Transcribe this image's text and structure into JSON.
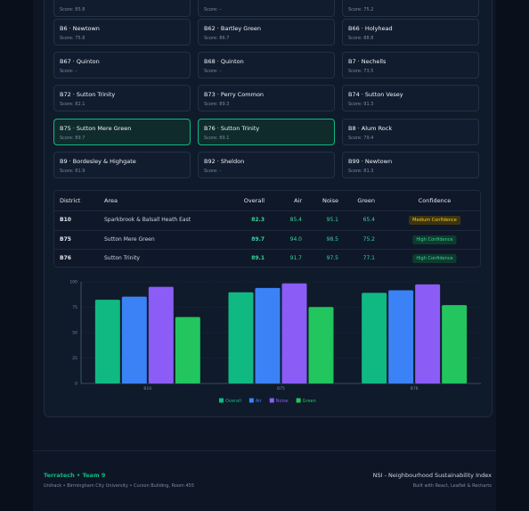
{
  "cards": [
    {
      "score": "Score: 85.8"
    },
    {
      "score": "Score: –"
    },
    {
      "score": "Score: 75.2"
    },
    {
      "title": "B6 · Newtown",
      "score": "Score: 75.8"
    },
    {
      "title": "B62 · Bartley Green",
      "score": "Score: 86.7"
    },
    {
      "title": "B66 · Holyhead",
      "score": "Score: 88.8"
    },
    {
      "title": "B67 · Quinton",
      "score": "Score: –"
    },
    {
      "title": "B68 · Quinton",
      "score": "Score: –"
    },
    {
      "title": "B7 · Nechells",
      "score": "Score: 73.5"
    },
    {
      "title": "B72 · Sutton Trinity",
      "score": "Score: 82.1"
    },
    {
      "title": "B73 · Perry Common",
      "score": "Score: 89.3"
    },
    {
      "title": "B74 · Sutton Vesey",
      "score": "Score: 91.3"
    },
    {
      "title": "B75 · Sutton Mere Green",
      "score": "Score: 89.7",
      "selected": true
    },
    {
      "title": "B76 · Sutton Trinity",
      "score": "Score: 89.1",
      "selected": true
    },
    {
      "title": "B8 · Alum Rock",
      "score": "Score: 79.4"
    },
    {
      "title": "B9 · Bordesley & Highgate",
      "score": "Score: 81.9"
    },
    {
      "title": "B92 · Sheldon",
      "score": "Score: –"
    },
    {
      "title": "B99 · Newtown",
      "score": "Score: 81.3"
    }
  ],
  "table": {
    "headers": [
      "District",
      "Area",
      "Overall",
      "Air",
      "Noise",
      "Green",
      "Confidence"
    ],
    "rows": [
      [
        "B10",
        "Sparkbrook & Balsall Heath East",
        "82.3",
        "85.4",
        "95.1",
        "65.4",
        "Medium Confidence"
      ],
      [
        "B75",
        "Sutton Mere Green",
        "89.7",
        "94.0",
        "98.5",
        "75.2",
        "High Confidence"
      ],
      [
        "B76",
        "Sutton Trinity",
        "89.1",
        "91.7",
        "97.5",
        "77.1",
        "High Confidence"
      ]
    ]
  },
  "chart_data": {
    "type": "bar",
    "categories": [
      "B10",
      "B75",
      "B76"
    ],
    "series": [
      {
        "name": "Overall",
        "color": "#10b981",
        "values": [
          82.3,
          89.7,
          89.1
        ]
      },
      {
        "name": "Air",
        "color": "#3b82f6",
        "values": [
          85.4,
          94.0,
          91.7
        ]
      },
      {
        "name": "Noise",
        "color": "#8b5cf6",
        "values": [
          95.1,
          98.5,
          97.5
        ]
      },
      {
        "name": "Green",
        "color": "#22c55e",
        "values": [
          65.4,
          75.2,
          77.1
        ]
      }
    ],
    "ylim": [
      0,
      100
    ],
    "yticks": [
      0,
      25,
      50,
      75,
      100
    ],
    "grid": true,
    "legend": "bottom"
  },
  "footer": {
    "team": "Terratech • Team 9",
    "address": "Unihack • Birmingham City University • Curzon Building, Room 455",
    "product": "NSI - Neighbourhood Sustainability Index",
    "credits": "Built with React, Leaflet & Recharts"
  }
}
